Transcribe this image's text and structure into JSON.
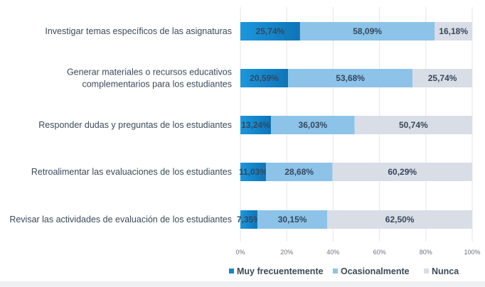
{
  "chart_data": {
    "type": "bar",
    "orientation": "horizontal",
    "stacked": "percent",
    "categories": [
      "Investigar temas específicos de las asignaturas",
      "Generar materiales o recursos educativos complementarios para los estudiantes",
      "Responder dudas y preguntas de los estudiantes",
      "Retroalimentar las evaluaciones de los estudiantes",
      "Revisar las actividades de evaluación de los estudiantes"
    ],
    "category_lines": [
      [
        "Investigar temas específicos de las asignaturas"
      ],
      [
        "Generar materiales o recursos educativos",
        "complementarios para los estudiantes"
      ],
      [
        "Responder dudas y preguntas de los estudiantes"
      ],
      [
        "Retroalimentar las evaluaciones de los estudiantes"
      ],
      [
        "Revisar las actividades de evaluación de los estudiantes"
      ]
    ],
    "series": [
      {
        "name": "Muy frecuentemente",
        "color": "#1485cc",
        "values": [
          25.74,
          20.59,
          13.24,
          11.03,
          7.35
        ],
        "labels": [
          "25,74%",
          "20,59%",
          "13,24%",
          "11,03%",
          "7,35%"
        ]
      },
      {
        "name": "Ocasionalmente",
        "color": "#8dc3e8",
        "values": [
          58.09,
          53.68,
          36.03,
          28.68,
          30.15
        ],
        "labels": [
          "58,09%",
          "53,68%",
          "36,03%",
          "28,68%",
          "30,15%"
        ]
      },
      {
        "name": "Nunca",
        "color": "#d9dde6",
        "values": [
          16.18,
          25.74,
          50.74,
          60.29,
          62.5
        ],
        "labels": [
          "16,18%",
          "25,74%",
          "50,74%",
          "60,29%",
          "62,50%"
        ]
      }
    ],
    "xlim": [
      0,
      100
    ],
    "xticks": [
      "0%",
      "20%",
      "40%",
      "60%",
      "80%",
      "100%"
    ],
    "grid": "vertical",
    "legend": "bottom"
  }
}
